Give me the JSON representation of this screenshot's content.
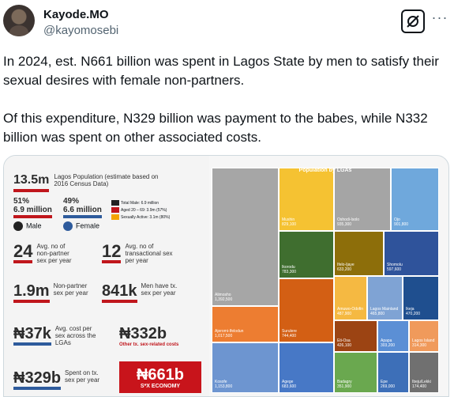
{
  "tweet": {
    "author_name": "Kayode.MO",
    "author_handle": "@kayomosebi",
    "paragraph_1": "In 2024, est. N661 billion was spent in Lagos State by men to satisfy their sexual desires with female non-partners.",
    "paragraph_2": "Of this expenditure, N329 billion was payment to the babes, while N332 billion was spent on other associated costs."
  },
  "icons": {
    "grok": "grok-icon",
    "more": "more-dots-icon"
  },
  "infographic": {
    "population_value": "13.5m",
    "population_label": "Lagos Population (estimate based on 2016 Census Data)",
    "male_pct": "51%",
    "male_count": "6.9 million",
    "male_label": "Male",
    "female_pct": "49%",
    "female_count": "6.6 million",
    "female_label": "Female",
    "legend_total_male": "Total Male: 6.9 million",
    "legend_aged": "Aged 20 – 69: 3.9m (57%)",
    "legend_sexually_active": "Sexually Active: 3.1m (80%)",
    "nonpartner_value": "24",
    "nonpartner_label": "Avg. no of non-partner sex per year",
    "transactional_value": "12",
    "transactional_label": "Avg. no of transactional sex per year",
    "nonpartner_total": "1.9m",
    "nonpartner_total_label": "Non-partner sex per year",
    "men_tx": "841k",
    "men_tx_label": "Men have tx. sex per year",
    "avg_cost": "₦37k",
    "avg_cost_label": "Avg. cost per sex across the LGAs",
    "other_costs": "₦332b",
    "other_costs_label": "Other tx. sex-related costs",
    "spent_tx": "₦329b",
    "spent_tx_label": "Spent on tx. sex per year",
    "economy_value": "₦661b",
    "economy_label": "S*X ECONOMY",
    "colors": {
      "red": "#c0161c",
      "blue": "#2e5b9c",
      "dark": "#222222",
      "orange": "#f4a300"
    }
  },
  "treemap": {
    "title": "Population by LGAs",
    "cells": [
      {
        "name": "Alimosho",
        "value": "1,392,500",
        "color": "#a6a6a6"
      },
      {
        "name": "Mushin",
        "value": "829,100",
        "color": "#f5c232"
      },
      {
        "name": "Oshodi-Isolo",
        "value": "935,300",
        "color": "#a5a5a5"
      },
      {
        "name": "Ojo",
        "value": "901,800",
        "color": "#6fa8dc"
      },
      {
        "name": "Ikorodu",
        "value": "783,300",
        "color": "#3f6e2f"
      },
      {
        "name": "Ifelo-Ijaye",
        "value": "633,200",
        "color": "#8d6e0a"
      },
      {
        "name": "Shomolu",
        "value": "597,600",
        "color": "#2f539b"
      },
      {
        "name": "Ajeromi-Ifelodun",
        "value": "1,017,500",
        "color": "#ed7d31"
      },
      {
        "name": "Surulere",
        "value": "744,400",
        "color": "#d35f14"
      },
      {
        "name": "Amuwo-Odofin",
        "value": "487,900",
        "color": "#f5b942"
      },
      {
        "name": "Lagos Mainland",
        "value": "465,800",
        "color": "#7fa3d4"
      },
      {
        "name": "Ikeja",
        "value": "470,200",
        "color": "#1f4f8f"
      },
      {
        "name": "Kosofe",
        "value": "1,153,800",
        "color": "#6d95d0"
      },
      {
        "name": "Agege",
        "value": "683,600",
        "color": "#4778c6"
      },
      {
        "name": "Eti-Osa",
        "value": "426,100",
        "color": "#9c4413"
      },
      {
        "name": "Apapa",
        "value": "303,200",
        "color": "#5b8fd5"
      },
      {
        "name": "Lagos Island",
        "value": "314,300",
        "color": "#f09a5b"
      },
      {
        "name": "Badagry",
        "value": "351,900",
        "color": "#6aa84f"
      },
      {
        "name": "Epe",
        "value": "269,000",
        "color": "#3d6fb8"
      },
      {
        "name": "Ibeju/Lekki",
        "value": "174,400",
        "color": "#707070"
      }
    ]
  }
}
